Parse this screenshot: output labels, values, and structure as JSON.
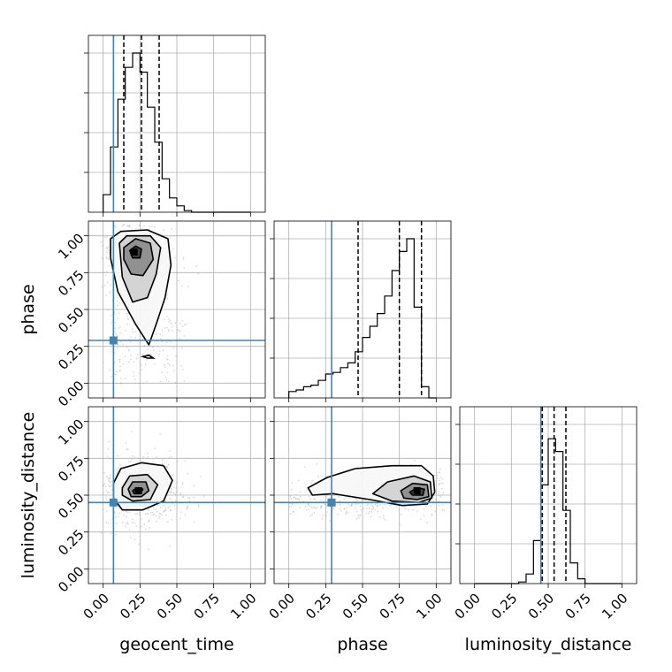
{
  "chart_data": {
    "type": "corner",
    "grid": true,
    "parameters": [
      "geocent_time",
      "phase",
      "luminosity_distance"
    ],
    "axis_labels": {
      "x": [
        "geocent_time",
        "phase",
        "luminosity_distance"
      ],
      "y": [
        "phase",
        "luminosity_distance"
      ]
    },
    "range": [
      0,
      1
    ],
    "tick_labels": [
      "0.00",
      "0.25",
      "0.50",
      "0.75",
      "1.00"
    ],
    "tick_values": [
      0,
      0.25,
      0.5,
      0.75,
      1.0
    ],
    "truths": [
      0.07,
      0.29,
      0.45
    ],
    "quantiles": [
      [
        0.14,
        0.26,
        0.38
      ],
      [
        0.47,
        0.75,
        0.9
      ],
      [
        0.46,
        0.54,
        0.62
      ]
    ],
    "histograms": [
      {
        "parameter": "geocent_time",
        "bin_edges": [
          0.0,
          0.05,
          0.1,
          0.15,
          0.2,
          0.25,
          0.3,
          0.35,
          0.4,
          0.45,
          0.5,
          0.55,
          0.6,
          0.65,
          0.7,
          0.75,
          0.8,
          0.85,
          0.9,
          0.95,
          1.0
        ],
        "counts": [
          0.11,
          0.41,
          0.71,
          0.91,
          1.0,
          0.88,
          0.66,
          0.44,
          0.21,
          0.09,
          0.04,
          0.01,
          0,
          0,
          0,
          0,
          0,
          0,
          0,
          0
        ]
      },
      {
        "parameter": "phase",
        "bin_edges": [
          0.0,
          0.05,
          0.1,
          0.15,
          0.2,
          0.25,
          0.3,
          0.35,
          0.4,
          0.45,
          0.5,
          0.55,
          0.6,
          0.65,
          0.7,
          0.75,
          0.8,
          0.85,
          0.9,
          0.95,
          1.0
        ],
        "counts": [
          0.04,
          0.05,
          0.07,
          0.08,
          0.11,
          0.15,
          0.16,
          0.19,
          0.22,
          0.29,
          0.38,
          0.45,
          0.53,
          0.64,
          0.8,
          0.92,
          1.0,
          0.57,
          0.07,
          0,
          0
        ]
      },
      {
        "parameter": "luminosity_distance",
        "bin_edges": [
          0.0,
          0.05,
          0.1,
          0.15,
          0.2,
          0.25,
          0.3,
          0.35,
          0.4,
          0.45,
          0.5,
          0.55,
          0.6,
          0.65,
          0.7,
          0.75,
          0.8,
          0.85,
          0.9,
          0.95,
          1.0
        ],
        "counts": [
          0,
          0,
          0,
          0,
          0,
          0,
          0.01,
          0.06,
          0.27,
          0.62,
          0.91,
          0.83,
          0.46,
          0.13,
          0.03,
          0,
          0,
          0,
          0,
          0
        ]
      }
    ],
    "pairs": [
      {
        "x": "geocent_time",
        "y": "phase",
        "density_peak": [
          0.21,
          0.89
        ],
        "contours": [
          [
            [
              0.05,
              0.98
            ],
            [
              0.12,
              1.03
            ],
            [
              0.3,
              1.04
            ],
            [
              0.44,
              0.98
            ],
            [
              0.46,
              0.8
            ],
            [
              0.42,
              0.58
            ],
            [
              0.36,
              0.4
            ],
            [
              0.31,
              0.26
            ],
            [
              0.22,
              0.4
            ],
            [
              0.1,
              0.62
            ],
            [
              0.05,
              0.85
            ]
          ],
          [
            [
              0.11,
              0.95
            ],
            [
              0.16,
              1.0
            ],
            [
              0.32,
              1.0
            ],
            [
              0.39,
              0.92
            ],
            [
              0.36,
              0.74
            ],
            [
              0.3,
              0.58
            ],
            [
              0.2,
              0.55
            ],
            [
              0.13,
              0.72
            ]
          ],
          [
            [
              0.14,
              0.92
            ],
            [
              0.22,
              0.98
            ],
            [
              0.32,
              0.95
            ],
            [
              0.34,
              0.84
            ],
            [
              0.27,
              0.73
            ],
            [
              0.19,
              0.74
            ],
            [
              0.14,
              0.84
            ]
          ],
          [
            [
              0.18,
              0.9
            ],
            [
              0.22,
              0.93
            ],
            [
              0.26,
              0.91
            ],
            [
              0.25,
              0.85
            ],
            [
              0.2,
              0.85
            ]
          ]
        ],
        "islands": [
          [
            [
              0.27,
              0.18
            ],
            [
              0.3,
              0.17
            ],
            [
              0.34,
              0.17
            ],
            [
              0.31,
              0.19
            ]
          ]
        ]
      },
      {
        "x": "geocent_time",
        "y": "luminosity_distance",
        "density_peak": [
          0.24,
          0.53
        ],
        "contours": [
          [
            [
              0.07,
              0.58
            ],
            [
              0.12,
              0.68
            ],
            [
              0.26,
              0.72
            ],
            [
              0.41,
              0.7
            ],
            [
              0.47,
              0.6
            ],
            [
              0.41,
              0.46
            ],
            [
              0.27,
              0.4
            ],
            [
              0.13,
              0.4
            ],
            [
              0.07,
              0.48
            ]
          ],
          [
            [
              0.13,
              0.55
            ],
            [
              0.18,
              0.63
            ],
            [
              0.3,
              0.64
            ],
            [
              0.37,
              0.57
            ],
            [
              0.32,
              0.47
            ],
            [
              0.2,
              0.46
            ],
            [
              0.13,
              0.5
            ]
          ],
          [
            [
              0.17,
              0.54
            ],
            [
              0.2,
              0.59
            ],
            [
              0.29,
              0.59
            ],
            [
              0.31,
              0.53
            ],
            [
              0.26,
              0.49
            ],
            [
              0.19,
              0.49
            ]
          ],
          [
            [
              0.2,
              0.53
            ],
            [
              0.23,
              0.55
            ],
            [
              0.27,
              0.54
            ],
            [
              0.25,
              0.51
            ],
            [
              0.21,
              0.51
            ]
          ]
        ],
        "islands": []
      },
      {
        "x": "phase",
        "y": "luminosity_distance",
        "density_peak": [
          0.87,
          0.53
        ],
        "contours": [
          [
            [
              0.13,
              0.55
            ],
            [
              0.26,
              0.62
            ],
            [
              0.45,
              0.68
            ],
            [
              0.7,
              0.7
            ],
            [
              0.9,
              0.7
            ],
            [
              0.98,
              0.63
            ],
            [
              0.99,
              0.52
            ],
            [
              0.94,
              0.44
            ],
            [
              0.77,
              0.43
            ],
            [
              0.55,
              0.47
            ],
            [
              0.3,
              0.51
            ],
            [
              0.16,
              0.5
            ]
          ],
          [
            [
              0.57,
              0.51
            ],
            [
              0.67,
              0.59
            ],
            [
              0.85,
              0.63
            ],
            [
              0.96,
              0.59
            ],
            [
              0.97,
              0.48
            ],
            [
              0.88,
              0.45
            ],
            [
              0.7,
              0.46
            ]
          ],
          [
            [
              0.76,
              0.53
            ],
            [
              0.84,
              0.58
            ],
            [
              0.94,
              0.57
            ],
            [
              0.95,
              0.49
            ],
            [
              0.87,
              0.47
            ],
            [
              0.78,
              0.48
            ]
          ],
          [
            [
              0.82,
              0.52
            ],
            [
              0.87,
              0.55
            ],
            [
              0.92,
              0.54
            ],
            [
              0.91,
              0.5
            ],
            [
              0.84,
              0.5
            ]
          ]
        ],
        "islands": []
      }
    ]
  },
  "colors": {
    "truth": "#4682b4",
    "hist": "#000000",
    "grid": "#b0b0b0",
    "density_dark": "#1a1a1a",
    "scatter": "#b0b0b0"
  }
}
